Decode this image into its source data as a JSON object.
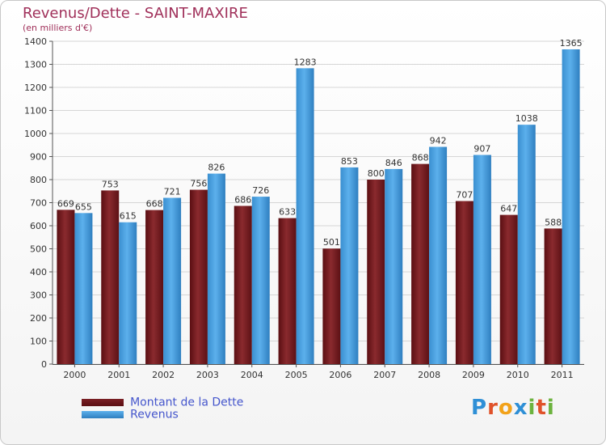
{
  "chart_data": {
    "type": "bar",
    "title": "Revenus/Dette - SAINT-MAXIRE",
    "subtitle": "(en milliers d'€)",
    "categories": [
      "2000",
      "2001",
      "2002",
      "2003",
      "2004",
      "2005",
      "2006",
      "2007",
      "2008",
      "2009",
      "2010",
      "2011"
    ],
    "series": [
      {
        "name": "Montant de la Dette",
        "color": "#7a1f24",
        "values": [
          669,
          753,
          668,
          756,
          686,
          633,
          501,
          800,
          868,
          707,
          647,
          588
        ]
      },
      {
        "name": "Revenus",
        "color": "#4aa3e4",
        "values": [
          655,
          615,
          721,
          826,
          726,
          1283,
          853,
          846,
          942,
          907,
          1038,
          1365
        ]
      }
    ],
    "ylim": [
      0,
      1400
    ],
    "yticks": [
      0,
      100,
      200,
      300,
      400,
      500,
      600,
      700,
      800,
      900,
      1000,
      1100,
      1200,
      1300,
      1400
    ],
    "grid": true,
    "legend_position": "bottom-left"
  },
  "brand": {
    "letters": [
      {
        "ch": "P",
        "color": "#2e8fd6"
      },
      {
        "ch": "r",
        "color": "#e0522a"
      },
      {
        "ch": "o",
        "color": "#f2a21a"
      },
      {
        "ch": "x",
        "color": "#2e8fd6"
      },
      {
        "ch": "i",
        "color": "#6cb33e"
      },
      {
        "ch": "t",
        "color": "#e0522a"
      },
      {
        "ch": "i",
        "color": "#6cb33e"
      }
    ]
  }
}
